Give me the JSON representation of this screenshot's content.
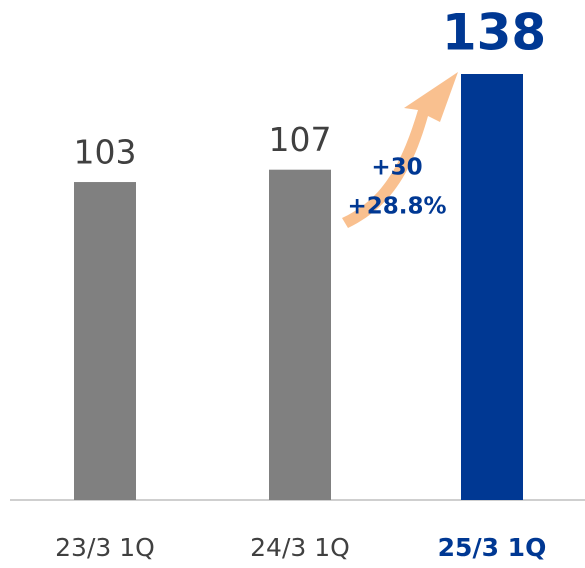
{
  "chart_data": {
    "type": "bar",
    "categories": [
      "23/3 1Q",
      "24/3 1Q",
      "25/3 1Q"
    ],
    "values": [
      103,
      107,
      138
    ],
    "colors": [
      "#808080",
      "#808080",
      "#003893"
    ],
    "highlight": 2,
    "annotations": [
      "+30",
      "+28.8%"
    ]
  }
}
